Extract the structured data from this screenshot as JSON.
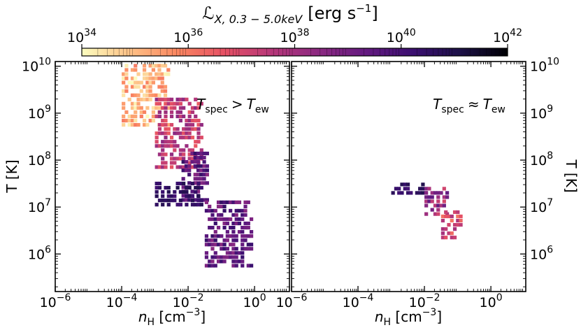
{
  "colorbar": {
    "label": "ℒX, 0.3 − 5.0keV [erg s⁻¹]",
    "label_main": "ℒ",
    "label_sub": "X, 0.3 − 5.0keV",
    "label_unit": "[erg s",
    "label_unit_sup": "−1",
    "label_unit_end": "]",
    "scale": "log",
    "range": [
      34,
      42
    ],
    "ticks": [
      {
        "base": "10",
        "exp": "34"
      },
      {
        "base": "10",
        "exp": "36"
      },
      {
        "base": "10",
        "exp": "38"
      },
      {
        "base": "10",
        "exp": "40"
      },
      {
        "base": "10",
        "exp": "42"
      }
    ],
    "colormap": "magma_r",
    "colors": [
      "#fcfdbf",
      "#fec287",
      "#fb8861",
      "#e65164",
      "#b73779",
      "#8c2981",
      "#641a80",
      "#3b0f70",
      "#1d1147",
      "#000004"
    ]
  },
  "chart_data": [
    {
      "type": "heatmap",
      "panel": "left",
      "annotation": {
        "t1": "T",
        "s1": "spec",
        "op": ">",
        "t2": "T",
        "s2": "ew"
      },
      "xlabel": {
        "main": "n",
        "sub": "H",
        "unit": " [cm",
        "sup": "−3",
        "end": "]"
      },
      "ylabel": "T [K]",
      "xscale": "log",
      "yscale": "log",
      "xlim_exp": [
        -6,
        1.05
      ],
      "ylim_exp": [
        5.2,
        10.1
      ],
      "xticks": [
        {
          "base": "10",
          "exp": "−6"
        },
        {
          "base": "10",
          "exp": "−4"
        },
        {
          "base": "10",
          "exp": "−2"
        },
        {
          "base": "10",
          "exp": "0"
        }
      ],
      "yticks": [
        {
          "base": "10",
          "exp": "6"
        },
        {
          "base": "10",
          "exp": "7"
        },
        {
          "base": "10",
          "exp": "8"
        },
        {
          "base": "10",
          "exp": "9"
        },
        {
          "base": "10",
          "exp": "10"
        }
      ],
      "regions": [
        {
          "desc": "hot diffuse plume",
          "x_log": [
            -4.0,
            -2.6
          ],
          "y_log": [
            8.7,
            10.0
          ],
          "lum_log": [
            34.0,
            36.0
          ]
        },
        {
          "desc": "diagonal band",
          "x_log": [
            -3.0,
            -1.6
          ],
          "y_log": [
            7.8,
            9.3
          ],
          "lum_log": [
            36.5,
            38.5
          ]
        },
        {
          "desc": "dense warm clump",
          "x_log": [
            -2.2,
            -1.4
          ],
          "y_log": [
            7.1,
            8.1
          ],
          "lum_log": [
            38.5,
            40.5
          ]
        },
        {
          "desc": "cool dense tail",
          "x_log": [
            -3.0,
            -1.6
          ],
          "y_log": [
            7.0,
            7.5
          ],
          "lum_log": [
            40.0,
            41.0
          ]
        },
        {
          "desc": "scattered low-T points",
          "x_log": [
            -1.5,
            -0.1
          ],
          "y_log": [
            5.7,
            7.1
          ],
          "lum_log": [
            38.5,
            40.5
          ]
        }
      ]
    },
    {
      "type": "heatmap",
      "panel": "right",
      "annotation": {
        "t1": "T",
        "s1": "spec",
        "op": "≈",
        "t2": "T",
        "s2": "ew"
      },
      "xlabel": {
        "main": "n",
        "sub": "H",
        "unit": " [cm",
        "sup": "−3",
        "end": "]"
      },
      "ylabel": "T [K]",
      "xscale": "log",
      "yscale": "log",
      "xlim_exp": [
        -6,
        1.05
      ],
      "ylim_exp": [
        5.2,
        10.1
      ],
      "xticks": [
        {
          "base": "10",
          "exp": "−6"
        },
        {
          "base": "10",
          "exp": "−4"
        },
        {
          "base": "10",
          "exp": "−2"
        },
        {
          "base": "10",
          "exp": "0"
        }
      ],
      "yticks": [
        {
          "base": "10",
          "exp": "6"
        },
        {
          "base": "10",
          "exp": "7"
        },
        {
          "base": "10",
          "exp": "8"
        },
        {
          "base": "10",
          "exp": "9"
        },
        {
          "base": "10",
          "exp": "10"
        }
      ],
      "regions": [
        {
          "desc": "cool band",
          "x_log": [
            -3.0,
            -2.0
          ],
          "y_log": [
            7.25,
            7.5
          ],
          "lum_log": [
            40.0,
            41.0
          ]
        },
        {
          "desc": "dense patch",
          "x_log": [
            -2.0,
            -1.3
          ],
          "y_log": [
            6.8,
            7.4
          ],
          "lum_log": [
            37.0,
            39.5
          ]
        },
        {
          "desc": "dense tail",
          "x_log": [
            -1.5,
            -0.9
          ],
          "y_log": [
            6.3,
            6.9
          ],
          "lum_log": [
            36.0,
            38.0
          ]
        }
      ]
    }
  ]
}
